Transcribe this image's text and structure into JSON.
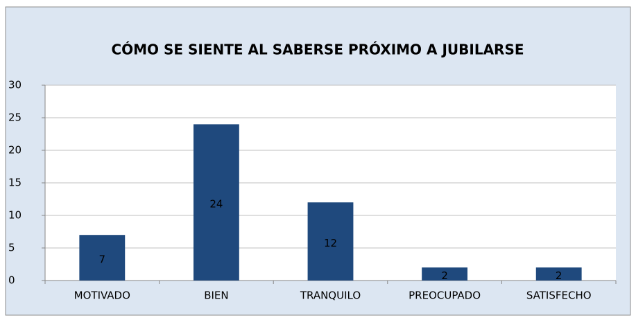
{
  "chart_data": {
    "type": "bar",
    "title": "CÓMO SE SIENTE AL SABERSE PRÓXIMO A JUBILARSE",
    "categories": [
      "MOTIVADO",
      "BIEN",
      "TRANQUILO",
      "PREOCUPADO",
      "SATISFECHO"
    ],
    "values": [
      7,
      24,
      12,
      2,
      2
    ],
    "color": "#1f497d",
    "ylim": [
      0,
      30
    ],
    "yticks": [
      0,
      5,
      10,
      15,
      20,
      25,
      30
    ],
    "grid": true,
    "data_labels": true
  }
}
